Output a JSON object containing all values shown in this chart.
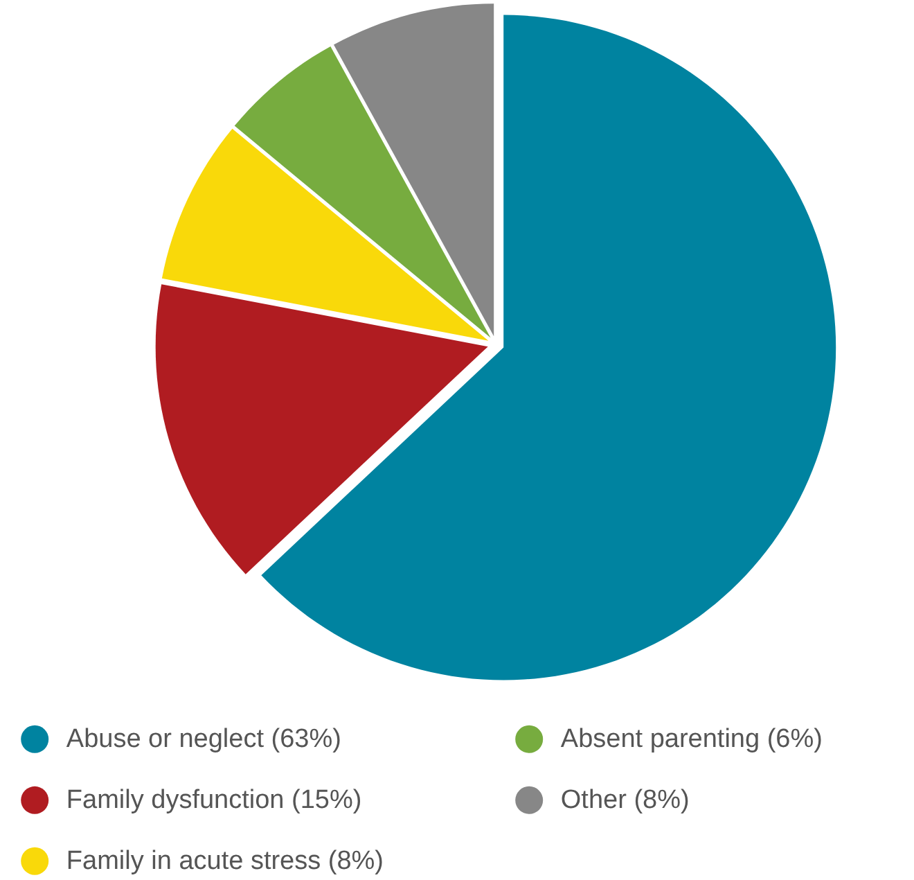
{
  "chart_data": {
    "type": "pie",
    "categories": [
      "Abuse or neglect (63%)",
      "Family dysfunction (15%)",
      "Family in acute stress (8%)",
      "Absent parenting (6%)",
      "Other (8%)"
    ],
    "values": [
      63,
      15,
      8,
      6,
      8
    ],
    "colors": [
      "#0083a0",
      "#b01c21",
      "#f9d90a",
      "#77ac3f",
      "#878787"
    ],
    "legend": "bottom"
  }
}
